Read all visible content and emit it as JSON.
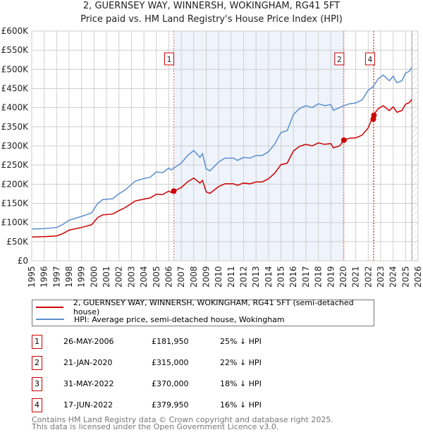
{
  "title": "2, GUERNSEY WAY, WINNERSH, WOKINGHAM, RG41 5FT",
  "subtitle": "Price paid vs. HM Land Registry's House Price Index (HPI)",
  "chart_data": {
    "type": "line",
    "title": "2, GUERNSEY WAY, WINNERSH, WOKINGHAM, RG41 5FT",
    "subtitle": "Price paid vs. HM Land Registry's House Price Index (HPI)",
    "xlim": [
      1995,
      2026
    ],
    "ylim": [
      0,
      600000
    ],
    "grid": true,
    "y_ticks": [
      {
        "v": 0,
        "label": "£0"
      },
      {
        "v": 50000,
        "label": "£50K"
      },
      {
        "v": 100000,
        "label": "£100K"
      },
      {
        "v": 150000,
        "label": "£150K"
      },
      {
        "v": 200000,
        "label": "£200K"
      },
      {
        "v": 250000,
        "label": "£250K"
      },
      {
        "v": 300000,
        "label": "£300K"
      },
      {
        "v": 350000,
        "label": "£350K"
      },
      {
        "v": 400000,
        "label": "£400K"
      },
      {
        "v": 450000,
        "label": "£450K"
      },
      {
        "v": 500000,
        "label": "£500K"
      },
      {
        "v": 550000,
        "label": "£550K"
      },
      {
        "v": 600000,
        "label": "£600K"
      }
    ],
    "x_ticks": [
      "1995",
      "1996",
      "1997",
      "1998",
      "1999",
      "2000",
      "2001",
      "2002",
      "2003",
      "2004",
      "2005",
      "2006",
      "2007",
      "2008",
      "2009",
      "2010",
      "2011",
      "2012",
      "2013",
      "2014",
      "2015",
      "2016",
      "2017",
      "2018",
      "2019",
      "2020",
      "2021",
      "2022",
      "2023",
      "2024",
      "2025",
      "2026"
    ],
    "x": [
      1995,
      1996,
      1997,
      1997.5,
      1998,
      1999,
      1999.8,
      2000.3,
      2000.7,
      2001.5,
      2002,
      2002.5,
      2003.3,
      2004,
      2004.5,
      2005,
      2005.5,
      2006,
      2006.2,
      2006.4,
      2007,
      2007.5,
      2008,
      2008.5,
      2008.7,
      2009,
      2009.3,
      2010,
      2010.5,
      2011.2,
      2011.5,
      2012,
      2012.5,
      2013,
      2013.5,
      2014,
      2014.5,
      2015,
      2015.5,
      2016,
      2016.5,
      2017,
      2017.5,
      2018,
      2018.5,
      2019,
      2019.2,
      2019.7,
      2020.05,
      2020.5,
      2021,
      2021.5,
      2022,
      2022.4,
      2022.8,
      2023.2,
      2023.7,
      2024,
      2024.3,
      2024.7,
      2025,
      2025.3,
      2025.5
    ],
    "series": [
      {
        "name": "2, GUERNSEY WAY, WINNERSH, WOKINGHAM, RG41 5FT (semi-detached house)",
        "color": "#cc0000",
        "values": [
          62,
          63,
          65,
          71,
          80,
          87,
          94,
          113,
          120,
          122,
          131,
          139,
          156,
          161,
          164,
          174,
          173,
          182,
          178,
          182,
          191,
          206,
          216,
          203,
          210,
          180,
          176,
          194,
          201,
          201,
          197,
          203,
          201,
          206,
          206,
          214,
          229,
          251,
          255,
          287,
          299,
          304,
          300,
          308,
          304,
          306,
          295,
          300,
          315,
          320,
          321,
          328,
          347,
          380,
          397,
          405,
          392,
          402,
          388,
          392,
          409,
          413,
          422
        ]
      },
      {
        "name": "HPI: Average price, semi-detached house, Wokingham",
        "color": "#5b8fd0",
        "values": [
          83,
          84,
          87,
          95,
          106,
          116,
          125,
          150,
          160,
          162,
          175,
          185,
          208,
          215,
          218,
          232,
          230,
          242,
          237,
          242,
          255,
          275,
          288,
          270,
          280,
          240,
          235,
          258,
          268,
          268,
          262,
          270,
          268,
          275,
          275,
          285,
          305,
          335,
          340,
          382,
          398,
          405,
          400,
          410,
          405,
          408,
          393,
          400,
          405,
          410,
          412,
          420,
          445,
          455,
          475,
          485,
          470,
          482,
          465,
          470,
          490,
          495,
          505
        ]
      }
    ],
    "value_unit": "£K",
    "shaded_range": [
      2006.4,
      2020.05
    ],
    "forecast_from": 2025.5,
    "sales": [
      {
        "id": "1",
        "x": 2006.4,
        "price": 181950,
        "show_label": true
      },
      {
        "id": "2",
        "x": 2020.05,
        "price": 315000,
        "show_label": true
      },
      {
        "id": "3",
        "x": 2022.41,
        "price": 370000,
        "show_label": false
      },
      {
        "id": "4",
        "x": 2022.46,
        "price": 379950,
        "show_label": true
      }
    ]
  },
  "legend": {
    "property": "2, GUERNSEY WAY, WINNERSH, WOKINGHAM, RG41 5FT (semi-detached house)",
    "hpi": "HPI: Average price, semi-detached house, Wokingham"
  },
  "table": [
    {
      "id": "1",
      "date": "26-MAY-2006",
      "price": "£181,950",
      "hpi": "25% ↓ HPI"
    },
    {
      "id": "2",
      "date": "21-JAN-2020",
      "price": "£315,000",
      "hpi": "22% ↓ HPI"
    },
    {
      "id": "3",
      "date": "31-MAY-2022",
      "price": "£370,000",
      "hpi": "18% ↓ HPI"
    },
    {
      "id": "4",
      "date": "17-JUN-2022",
      "price": "£379,950",
      "hpi": "16% ↓ HPI"
    }
  ],
  "footer": {
    "line1": "Contains HM Land Registry data © Crown copyright and database right 2025.",
    "line2": "This data is licensed under the Open Government Licence v3.0."
  }
}
